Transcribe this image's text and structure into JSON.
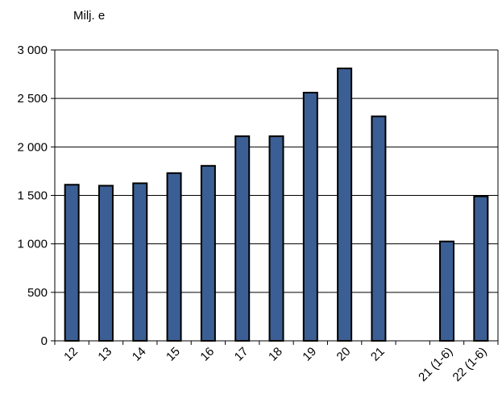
{
  "chart_data": {
    "type": "bar",
    "unit_label": "Milj. e",
    "categories": [
      "12",
      "13",
      "14",
      "15",
      "16",
      "17",
      "18",
      "19",
      "20",
      "21",
      "",
      "21 (1-6)",
      "22 (1-6)"
    ],
    "values": [
      1610,
      1600,
      1625,
      1730,
      1805,
      2110,
      2110,
      2560,
      2810,
      2315,
      null,
      1025,
      1490
    ],
    "ylim": [
      0,
      3000
    ],
    "yticks": [
      0,
      500,
      1000,
      1500,
      2000,
      2500,
      3000
    ],
    "ytick_labels": [
      "0",
      "500",
      "1 000",
      "1 500",
      "2 000",
      "2 500",
      "3 000"
    ],
    "grid": true,
    "bar_color": "#3b5f94",
    "bar_edge_color": "#000000"
  }
}
